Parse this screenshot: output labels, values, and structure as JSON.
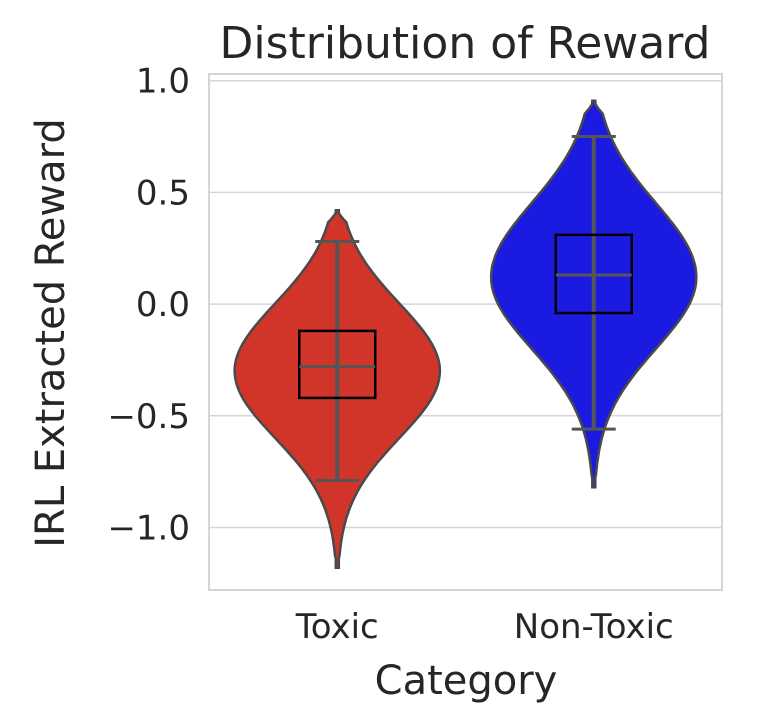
{
  "chart_data": {
    "type": "violin",
    "title": "Distribution of Reward",
    "xlabel": "Category",
    "ylabel": "IRL Extracted Reward",
    "ylim": [
      -1.28,
      1.03
    ],
    "yticks": [
      1.0,
      0.5,
      0.0,
      -0.5,
      -1.0
    ],
    "ytick_labels": [
      "1.0",
      "0.5",
      "0.0",
      "−0.5",
      "−1.0"
    ],
    "grid": true,
    "categories": [
      "Toxic",
      "Non-Toxic"
    ],
    "series": [
      {
        "category": "Toxic",
        "color": "#d13428",
        "q1": -0.42,
        "median": -0.28,
        "q3": -0.12,
        "whisker_low": -0.79,
        "whisker_high": 0.28,
        "kde_min": -1.18,
        "kde_max": 0.42,
        "kde_peak": -0.3
      },
      {
        "category": "Non-Toxic",
        "color": "#1a1ae0",
        "q1": -0.04,
        "median": 0.13,
        "q3": 0.31,
        "whisker_low": -0.56,
        "whisker_high": 0.75,
        "kde_min": -0.82,
        "kde_max": 0.91,
        "kde_peak": 0.12
      }
    ]
  }
}
